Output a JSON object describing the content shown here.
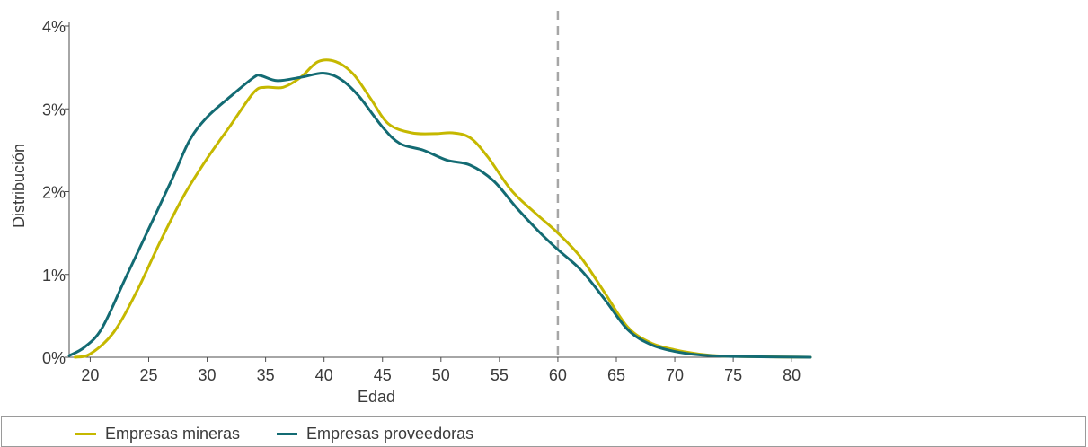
{
  "chart_data": {
    "type": "line",
    "xlabel": "Edad",
    "ylabel": "Distribución",
    "xlim": [
      18.2,
      81.6
    ],
    "ylim": [
      0,
      4
    ],
    "x_ticks": [
      20,
      25,
      30,
      35,
      40,
      45,
      50,
      55,
      60,
      65,
      70,
      75,
      80
    ],
    "x_tick_labels": [
      "20",
      "25",
      "30",
      "35",
      "40",
      "45",
      "50",
      "55",
      "60",
      "65",
      "70",
      "75",
      "80"
    ],
    "y_ticks": [
      0,
      1,
      2,
      3,
      4
    ],
    "y_tick_labels": [
      "0%",
      "1%",
      "2%",
      "3%",
      "4%"
    ],
    "reference_line": {
      "x": 60,
      "style": "dashed",
      "color": "#a6a6a6"
    },
    "legend_position": "bottom",
    "series": [
      {
        "name": "Empresas mineras",
        "color": "#c5b800",
        "points": [
          [
            18.7,
            0.0
          ],
          [
            20,
            0.04
          ],
          [
            22,
            0.3
          ],
          [
            24,
            0.8
          ],
          [
            26,
            1.4
          ],
          [
            28,
            1.95
          ],
          [
            30,
            2.4
          ],
          [
            32,
            2.8
          ],
          [
            34,
            3.2
          ],
          [
            35,
            3.26
          ],
          [
            36.5,
            3.26
          ],
          [
            38,
            3.38
          ],
          [
            39.5,
            3.57
          ],
          [
            41,
            3.57
          ],
          [
            42.5,
            3.42
          ],
          [
            44,
            3.12
          ],
          [
            45.5,
            2.82
          ],
          [
            47.5,
            2.71
          ],
          [
            49.5,
            2.7
          ],
          [
            51,
            2.71
          ],
          [
            52.5,
            2.65
          ],
          [
            54,
            2.42
          ],
          [
            56,
            2.02
          ],
          [
            58,
            1.75
          ],
          [
            60,
            1.5
          ],
          [
            62,
            1.2
          ],
          [
            64,
            0.78
          ],
          [
            66,
            0.36
          ],
          [
            68,
            0.17
          ],
          [
            70,
            0.09
          ],
          [
            72,
            0.04
          ],
          [
            74,
            0.015
          ],
          [
            78,
            0.005
          ],
          [
            81.6,
            0.0
          ]
        ]
      },
      {
        "name": "Empresas proveedoras",
        "color": "#136b73",
        "points": [
          [
            18.2,
            0.02
          ],
          [
            19.5,
            0.12
          ],
          [
            21,
            0.35
          ],
          [
            23,
            0.95
          ],
          [
            25,
            1.55
          ],
          [
            27,
            2.15
          ],
          [
            28.5,
            2.62
          ],
          [
            30,
            2.9
          ],
          [
            32,
            3.15
          ],
          [
            34,
            3.38
          ],
          [
            34.6,
            3.4
          ],
          [
            36,
            3.34
          ],
          [
            38,
            3.38
          ],
          [
            40,
            3.43
          ],
          [
            41.5,
            3.35
          ],
          [
            43,
            3.15
          ],
          [
            45,
            2.78
          ],
          [
            46.5,
            2.58
          ],
          [
            48.5,
            2.5
          ],
          [
            50.5,
            2.38
          ],
          [
            52.5,
            2.32
          ],
          [
            54.5,
            2.13
          ],
          [
            56.5,
            1.8
          ],
          [
            58.5,
            1.5
          ],
          [
            60,
            1.3
          ],
          [
            62,
            1.05
          ],
          [
            64,
            0.7
          ],
          [
            66,
            0.33
          ],
          [
            68,
            0.15
          ],
          [
            70,
            0.07
          ],
          [
            72,
            0.03
          ],
          [
            75,
            0.01
          ],
          [
            81.6,
            0.0
          ]
        ]
      }
    ]
  }
}
